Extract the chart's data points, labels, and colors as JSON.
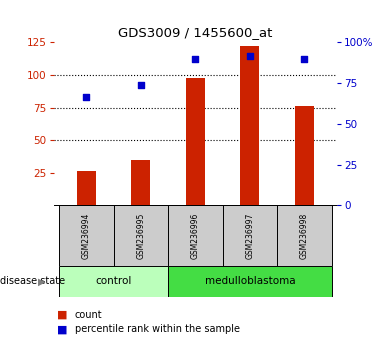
{
  "title": "GDS3009 / 1455600_at",
  "samples": [
    "GSM236994",
    "GSM236995",
    "GSM236996",
    "GSM236997",
    "GSM236998"
  ],
  "counts": [
    26,
    35,
    98,
    122,
    76
  ],
  "percentiles": [
    83,
    92,
    112,
    115,
    112
  ],
  "ylim_left": [
    0,
    125
  ],
  "ylim_right": [
    0,
    100
  ],
  "yticks_left": [
    25,
    50,
    75,
    100,
    125
  ],
  "yticks_right": [
    0,
    25,
    50,
    75,
    100
  ],
  "bar_color": "#cc2200",
  "scatter_color": "#0000cc",
  "control_indices": [
    0,
    1
  ],
  "medulloblastoma_indices": [
    2,
    3,
    4
  ],
  "control_color": "#bbffbb",
  "medulloblastoma_color": "#44dd44",
  "group_label": "disease state",
  "label_count": "count",
  "label_percentile": "percentile rank within the sample",
  "tick_color_left": "#cc2200",
  "tick_color_right": "#0000cc",
  "sample_box_color": "#cccccc",
  "bar_width": 0.35
}
